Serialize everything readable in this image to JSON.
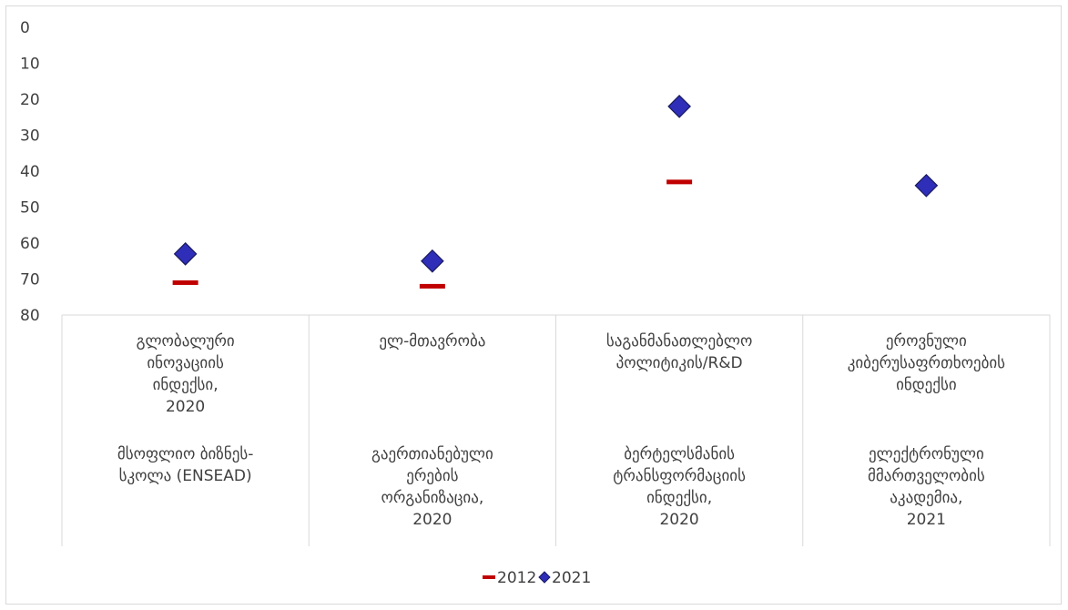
{
  "chart_data": {
    "type": "scatter",
    "title": "",
    "xlabel": "",
    "ylabel": "",
    "ylim": [
      0,
      80
    ],
    "y_reversed": true,
    "y_ticks": [
      "0",
      "10",
      "20",
      "30",
      "40",
      "50",
      "60",
      "70",
      "80"
    ],
    "grid": false,
    "legend_position": "bottom",
    "categories": [
      {
        "name_lines": [
          "გლობალური",
          "ინოვაციის",
          "ინდექსი,",
          "2020"
        ],
        "source_lines": [
          "მსოფლიო ბიზნეს-",
          "სკოლა (ENSEAD)"
        ]
      },
      {
        "name_lines": [
          "ელ-მთავრობა"
        ],
        "source_lines": [
          "გაერთიანებული",
          "ერების",
          "ორგანიზაცია,",
          "2020"
        ]
      },
      {
        "name_lines": [
          "საგანმანათლებლო",
          "პოლიტიკის/R&D"
        ],
        "source_lines": [
          "ბერტელსმანის",
          "ტრანსფორმაციის",
          "ინდექსი,",
          "2020"
        ]
      },
      {
        "name_lines": [
          "ეროვნული",
          "კიბერუსაფრთხოების",
          "ინდექსი"
        ],
        "source_lines": [
          "ელექტრონული",
          "მმართველობის",
          "აკადემია,",
          "2021"
        ]
      }
    ],
    "series": [
      {
        "name": "2012",
        "marker": "dash",
        "color": "#c00000",
        "values": [
          71,
          72,
          43,
          null
        ]
      },
      {
        "name": "2021",
        "marker": "diamond",
        "color": "#2e2eb8",
        "values": [
          63,
          65,
          22,
          44
        ]
      }
    ]
  }
}
